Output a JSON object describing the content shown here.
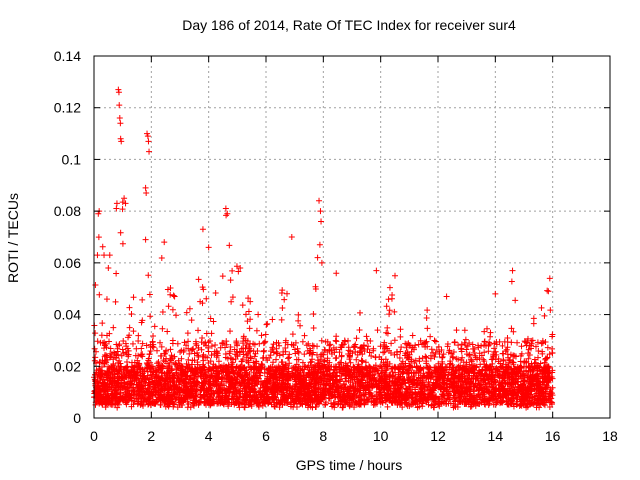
{
  "chart_data": {
    "type": "scatter",
    "title": "Day 186 of 2014, Rate Of TEC Index for receiver sur4",
    "xlabel": "GPS time / hours",
    "ylabel": "ROTI / TECUs",
    "xlim": [
      0,
      18
    ],
    "ylim": [
      0,
      0.14
    ],
    "x_ticks": [
      0,
      2,
      4,
      6,
      8,
      10,
      12,
      14,
      16,
      18
    ],
    "y_ticks": [
      0,
      0.02,
      0.04,
      0.06,
      0.08,
      0.1,
      0.12,
      0.14
    ],
    "x_tick_labels": [
      "0",
      "2",
      "4",
      "6",
      "8",
      "10",
      "12",
      "14",
      "16",
      "18"
    ],
    "y_tick_labels": [
      "0",
      "0.02",
      "0.04",
      "0.06",
      "0.08",
      "0.1",
      "0.12",
      "0.14"
    ],
    "grid": true,
    "marker": "+",
    "color": "#ff0000",
    "series": [
      {
        "name": "ROTI",
        "x_range": [
          0,
          16
        ],
        "envelope": [
          [
            0.0,
            0.064
          ],
          [
            0.2,
            0.08
          ],
          [
            0.4,
            0.055
          ],
          [
            0.6,
            0.07
          ],
          [
            0.8,
            0.063
          ],
          [
            1.0,
            0.084
          ],
          [
            1.2,
            0.048
          ],
          [
            1.4,
            0.05
          ],
          [
            1.6,
            0.045
          ],
          [
            1.8,
            0.068
          ],
          [
            2.0,
            0.056
          ],
          [
            2.2,
            0.05
          ],
          [
            2.4,
            0.068
          ],
          [
            2.6,
            0.055
          ],
          [
            2.8,
            0.054
          ],
          [
            3.0,
            0.045
          ],
          [
            3.2,
            0.05
          ],
          [
            3.4,
            0.04
          ],
          [
            3.6,
            0.05
          ],
          [
            3.8,
            0.073
          ],
          [
            4.0,
            0.044
          ],
          [
            4.2,
            0.052
          ],
          [
            4.4,
            0.046
          ],
          [
            4.6,
            0.081
          ],
          [
            4.8,
            0.06
          ],
          [
            5.0,
            0.063
          ],
          [
            5.2,
            0.044
          ],
          [
            5.4,
            0.048
          ],
          [
            5.6,
            0.046
          ],
          [
            5.8,
            0.038
          ],
          [
            6.0,
            0.043
          ],
          [
            6.2,
            0.05
          ],
          [
            6.4,
            0.04
          ],
          [
            6.6,
            0.058
          ],
          [
            6.8,
            0.07
          ],
          [
            7.0,
            0.052
          ],
          [
            7.2,
            0.044
          ],
          [
            7.4,
            0.046
          ],
          [
            7.6,
            0.04
          ],
          [
            7.8,
            0.067
          ],
          [
            8.0,
            0.038
          ],
          [
            8.2,
            0.034
          ],
          [
            8.4,
            0.056
          ],
          [
            8.6,
            0.032
          ],
          [
            8.8,
            0.03
          ],
          [
            9.0,
            0.036
          ],
          [
            9.2,
            0.04
          ],
          [
            9.4,
            0.052
          ],
          [
            9.6,
            0.048
          ],
          [
            9.8,
            0.057
          ],
          [
            10.0,
            0.04
          ],
          [
            10.2,
            0.044
          ],
          [
            10.4,
            0.056
          ],
          [
            10.6,
            0.04
          ],
          [
            10.8,
            0.045
          ],
          [
            11.0,
            0.038
          ],
          [
            11.2,
            0.036
          ],
          [
            11.4,
            0.042
          ],
          [
            11.6,
            0.044
          ],
          [
            11.8,
            0.04
          ],
          [
            12.0,
            0.038
          ],
          [
            12.2,
            0.033
          ],
          [
            12.4,
            0.047
          ],
          [
            12.6,
            0.04
          ],
          [
            12.8,
            0.036
          ],
          [
            13.0,
            0.034
          ],
          [
            13.2,
            0.03
          ],
          [
            13.4,
            0.035
          ],
          [
            13.6,
            0.034
          ],
          [
            13.8,
            0.036
          ],
          [
            14.0,
            0.048
          ],
          [
            14.2,
            0.04
          ],
          [
            14.4,
            0.036
          ],
          [
            14.6,
            0.058
          ],
          [
            14.8,
            0.038
          ],
          [
            15.0,
            0.034
          ],
          [
            15.2,
            0.036
          ],
          [
            15.4,
            0.04
          ],
          [
            15.6,
            0.044
          ],
          [
            15.8,
            0.052
          ],
          [
            16.0,
            0.04
          ]
        ],
        "spikes": [
          [
            0.15,
            0.079
          ],
          [
            0.18,
            0.08
          ],
          [
            0.12,
            0.063
          ],
          [
            0.85,
            0.127
          ],
          [
            0.87,
            0.126
          ],
          [
            0.88,
            0.121
          ],
          [
            0.9,
            0.116
          ],
          [
            0.92,
            0.114
          ],
          [
            0.93,
            0.108
          ],
          [
            0.95,
            0.107
          ],
          [
            1.85,
            0.11
          ],
          [
            1.88,
            0.109
          ],
          [
            1.9,
            0.107
          ],
          [
            1.92,
            0.103
          ],
          [
            1.8,
            0.089
          ],
          [
            1.82,
            0.087
          ],
          [
            0.8,
            0.083
          ],
          [
            0.78,
            0.081
          ],
          [
            1.05,
            0.085
          ],
          [
            1.1,
            0.083
          ],
          [
            4.6,
            0.081
          ],
          [
            4.65,
            0.079
          ],
          [
            7.85,
            0.084
          ],
          [
            7.9,
            0.08
          ],
          [
            7.92,
            0.076
          ],
          [
            7.88,
            0.067
          ],
          [
            7.95,
            0.06
          ],
          [
            6.9,
            0.07
          ],
          [
            3.8,
            0.073
          ],
          [
            14.6,
            0.057
          ],
          [
            9.85,
            0.057
          ],
          [
            12.3,
            0.047
          ],
          [
            4.0,
            0.066
          ],
          [
            2.45,
            0.068
          ],
          [
            1.8,
            0.069
          ],
          [
            0.35,
            0.063
          ],
          [
            0.5,
            0.058
          ],
          [
            0.55,
            0.063
          ],
          [
            5.1,
            0.058
          ],
          [
            7.8,
            0.062
          ],
          [
            8.45,
            0.056
          ],
          [
            10.5,
            0.055
          ],
          [
            14.0,
            0.048
          ],
          [
            15.85,
            0.049
          ],
          [
            15.9,
            0.054
          ]
        ]
      }
    ]
  }
}
